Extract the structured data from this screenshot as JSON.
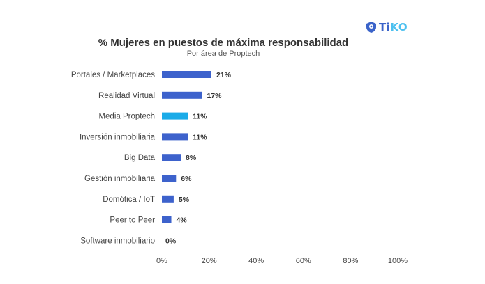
{
  "logo": {
    "text_ti": "Ti",
    "text_ko": "KO",
    "icon": "shield-pin-icon",
    "color_primary": "#3a63c9",
    "color_accent": "#4dc0ef"
  },
  "chart_data": {
    "type": "bar",
    "orientation": "horizontal",
    "title": "% Mujeres en puestos de máxima responsabilidad",
    "subtitle": "Por área de Proptech",
    "categories": [
      "Portales / Marketplaces",
      "Realidad Virtual",
      "Media Proptech",
      "Inversión inmobiliaria",
      "Big Data",
      "Gestión inmobiliaria",
      "Domótica / IoT",
      "Peer to Peer",
      "Software inmobiliario"
    ],
    "values": [
      21,
      17,
      11,
      11,
      8,
      6,
      5,
      4,
      0
    ],
    "value_labels": [
      "21%",
      "17%",
      "11%",
      "11%",
      "8%",
      "6%",
      "5%",
      "4%",
      "0%"
    ],
    "xlim": [
      0,
      100
    ],
    "x_ticks": [
      "0%",
      "20%",
      "40%",
      "60%",
      "80%",
      "100%"
    ],
    "bar_color": "#3d62cc",
    "highlight_color": "#1aabe8",
    "highlight_category": "Media Proptech",
    "grid": false
  }
}
